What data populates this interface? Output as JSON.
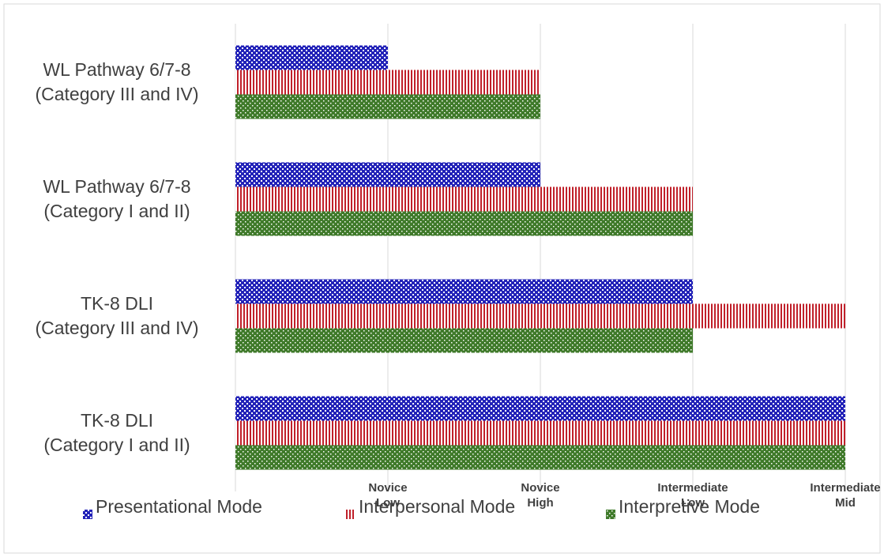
{
  "chart_data": {
    "type": "bar",
    "orientation": "horizontal",
    "categories": [
      "WL Pathway 6/7-8\n(Category III and IV)",
      "WL Pathway 6/7-8\n(Category I and II)",
      "TK-8 DLI\n(Category III and IV)",
      "TK-8 DLI\n(Category I and II)"
    ],
    "series": [
      {
        "name": "Presentational Mode",
        "color": "#2222b8",
        "pattern": "checker",
        "values": [
          1,
          2,
          3,
          4
        ]
      },
      {
        "name": "Interpersonal Mode",
        "color": "#c0202a",
        "pattern": "stripes",
        "values": [
          2,
          3,
          4,
          4
        ]
      },
      {
        "name": "Interpretive Mode",
        "color": "#3f7a2a",
        "pattern": "dots",
        "values": [
          2,
          3,
          3,
          4
        ]
      }
    ],
    "xlim": [
      0,
      4
    ],
    "xticks": [
      {
        "value": 1,
        "label": "Novice\nLow"
      },
      {
        "value": 2,
        "label": "Novice\nHigh"
      },
      {
        "value": 3,
        "label": "Intermediate\nLow"
      },
      {
        "value": 4,
        "label": "Intermediate\nMid"
      }
    ],
    "grid": true,
    "legend": "bottom"
  }
}
